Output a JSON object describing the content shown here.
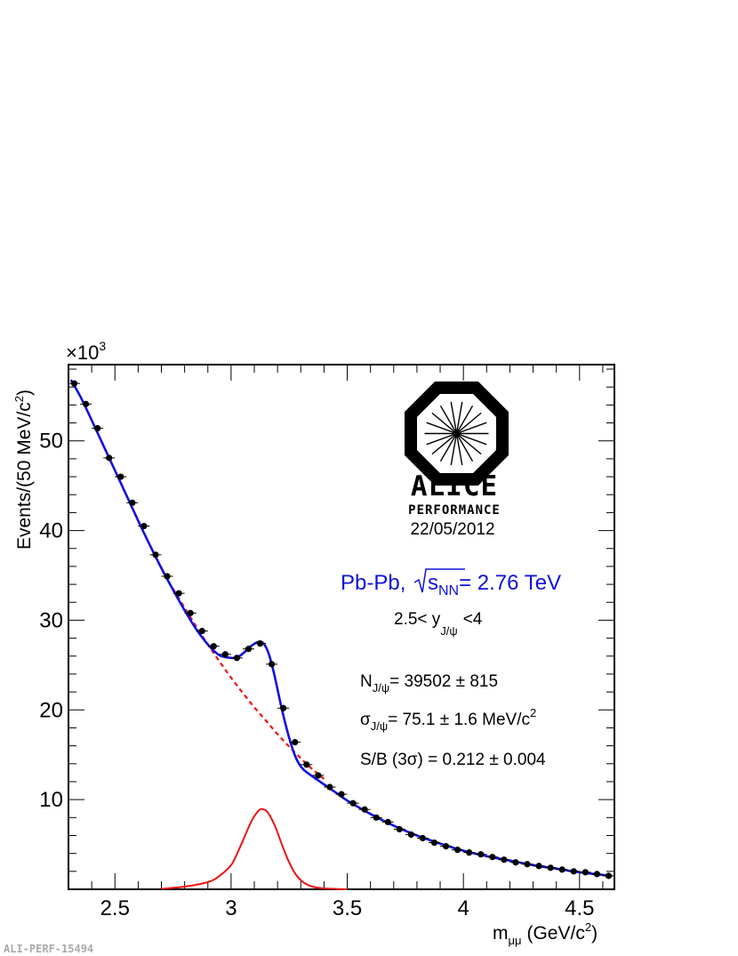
{
  "chart_data": {
    "type": "scatter",
    "xlabel_main": "m",
    "xlabel_sub": "μμ",
    "xlabel_unit": "(GeV/c",
    "xlabel_unit_sup": "2",
    "xlabel_unit_end": ")",
    "ylabel": "Events/(50 MeV/c",
    "ylabel_sup": "2",
    "ylabel_end": ")",
    "y_multiplier_prefix": "×10",
    "y_multiplier_exp": "3",
    "xlim": [
      2.3,
      4.65
    ],
    "ylim": [
      0,
      58.5
    ],
    "x_ticks": [
      2.5,
      3,
      3.5,
      4,
      4.5
    ],
    "x_tick_labels": [
      "2.5",
      "3",
      "3.5",
      "4",
      "4.5"
    ],
    "y_ticks": [
      10,
      20,
      30,
      40,
      50
    ],
    "y_tick_labels": [
      "10",
      "20",
      "30",
      "40",
      "50"
    ],
    "grid": false,
    "series": [
      {
        "style": "black markers with error bars",
        "x": [
          2.325,
          2.375,
          2.425,
          2.475,
          2.525,
          2.575,
          2.625,
          2.675,
          2.725,
          2.775,
          2.825,
          2.875,
          2.925,
          2.975,
          3.025,
          3.075,
          3.125,
          3.175,
          3.225,
          3.275,
          3.325,
          3.375,
          3.425,
          3.475,
          3.525,
          3.575,
          3.625,
          3.675,
          3.725,
          3.775,
          3.825,
          3.875,
          3.925,
          3.975,
          4.025,
          4.075,
          4.125,
          4.175,
          4.225,
          4.275,
          4.325,
          4.375,
          4.425,
          4.475,
          4.525,
          4.575,
          4.625
        ],
        "y": [
          56.4,
          54.1,
          51.4,
          48.1,
          46.0,
          43.1,
          40.5,
          37.3,
          34.9,
          33.0,
          30.8,
          28.8,
          27.1,
          26.2,
          25.8,
          26.8,
          27.4,
          25.1,
          20.2,
          16.4,
          13.9,
          12.7,
          11.4,
          10.6,
          9.6,
          8.9,
          8.0,
          7.5,
          6.7,
          6.1,
          5.7,
          5.2,
          4.8,
          4.4,
          4.1,
          3.9,
          3.6,
          3.3,
          3.0,
          2.8,
          2.6,
          2.4,
          2.2,
          2.0,
          1.9,
          1.7,
          1.5
        ]
      },
      {
        "style": "blue solid line",
        "x": [
          2.31,
          2.35,
          2.4,
          2.45,
          2.5,
          2.55,
          2.6,
          2.65,
          2.7,
          2.75,
          2.8,
          2.85,
          2.9,
          2.95,
          3.0,
          3.03,
          3.06,
          3.09,
          3.12,
          3.14,
          3.16,
          3.18,
          3.2,
          3.22,
          3.25,
          3.28,
          3.31,
          3.35,
          3.4,
          3.45,
          3.5,
          3.6,
          3.7,
          3.8,
          3.9,
          4.0,
          4.1,
          4.2,
          4.3,
          4.4,
          4.5,
          4.6,
          4.64
        ],
        "y": [
          56.8,
          55.0,
          52.3,
          49.5,
          46.7,
          43.9,
          41.1,
          38.4,
          35.8,
          33.4,
          31.1,
          29.0,
          27.3,
          26.1,
          25.8,
          25.9,
          26.5,
          27.2,
          27.6,
          27.4,
          26.4,
          24.6,
          22.3,
          19.9,
          16.9,
          14.6,
          13.4,
          12.6,
          11.7,
          10.8,
          9.9,
          8.4,
          7.1,
          6.0,
          5.1,
          4.3,
          3.7,
          3.2,
          2.7,
          2.3,
          1.9,
          1.6,
          1.5
        ]
      },
      {
        "style": "red dashed line",
        "x": [
          2.75,
          2.8,
          2.85,
          2.9,
          2.95,
          3.0,
          3.05,
          3.1,
          3.15,
          3.2,
          3.25,
          3.3,
          3.35,
          3.4
        ],
        "y": [
          33.5,
          31.4,
          29.3,
          27.3,
          25.4,
          23.6,
          21.9,
          20.3,
          18.8,
          17.3,
          15.9,
          14.6,
          13.4,
          12.3
        ]
      },
      {
        "style": "red solid line",
        "x": [
          2.7,
          2.8,
          2.9,
          2.95,
          3.0,
          3.03,
          3.06,
          3.09,
          3.12,
          3.14,
          3.16,
          3.19,
          3.22,
          3.25,
          3.28,
          3.31,
          3.35,
          3.4,
          3.5
        ],
        "y": [
          0.05,
          0.3,
          0.8,
          1.5,
          2.7,
          4.2,
          6.0,
          7.7,
          8.8,
          8.9,
          8.5,
          7.0,
          4.9,
          3.0,
          1.6,
          0.8,
          0.3,
          0.1,
          0.0
        ]
      }
    ]
  },
  "logo": {
    "word": "ALICE",
    "sub": "PERFORMANCE",
    "date": "22/05/2012"
  },
  "annotations": {
    "system_main": "Pb-Pb,",
    "system_s": "s",
    "system_sub": "NN",
    "system_energy": "= 2.76 TeV",
    "rapidity_pre": "2.5< y",
    "rapidity_sub": "J/ψ",
    "rapidity_post": "<4",
    "n_main": "N",
    "n_sub": "J/ψ",
    "n_value": "= 39502 ± 815",
    "sigma_main": "σ",
    "sigma_sub": "J/ψ",
    "sigma_value": "= 75.1 ± 1.6 MeV/c",
    "sigma_sup": "2",
    "sb_text": "S/B (3σ) = 0.212 ± 0.004"
  },
  "footer": "ALI-PERF-15494",
  "colors": {
    "fit_total": "#1010dd",
    "background_fit": "#ee1111",
    "signal": "#ee1111",
    "data": "#000000"
  }
}
